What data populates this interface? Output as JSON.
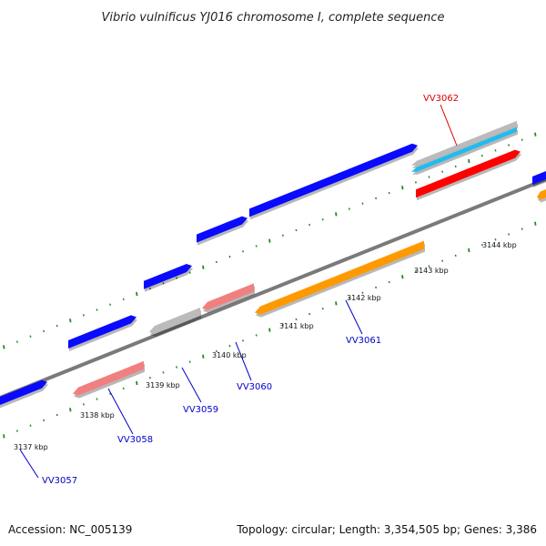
{
  "title": "Vibrio vulnificus YJ016 chromosome I, complete sequence",
  "footer": {
    "accession": "Accession: NC_005139",
    "summary": "Topology: circular; Length: 3,354,505 bp; Genes: 3,386"
  },
  "scale": {
    "tick_labels": [
      "3137 kbp",
      "3138 kbp",
      "3139 kbp",
      "3140 kbp",
      "3141 kbp",
      "3142 kbp",
      "3143 kbp",
      "3144 kbp"
    ]
  },
  "genes": [
    {
      "id": "VV3057",
      "color": "#0000cc"
    },
    {
      "id": "VV3058",
      "color": "#0000cc"
    },
    {
      "id": "VV3059",
      "color": "#0000cc"
    },
    {
      "id": "VV3060",
      "color": "#0000cc"
    },
    {
      "id": "VV3061",
      "color": "#0000cc"
    },
    {
      "id": "VV3062",
      "color": "#dd0000"
    }
  ],
  "colors": {
    "cds_forward": "#0a0aff",
    "cds_reverse_pink": "#f08080",
    "cds_reverse_gray": "#bbbbbb",
    "cds_reverse_orange": "#ff9900",
    "rna_cyan": "#22bbee",
    "rna_red": "#ff0000",
    "backbone": "#777777",
    "ticks": "#228822"
  }
}
